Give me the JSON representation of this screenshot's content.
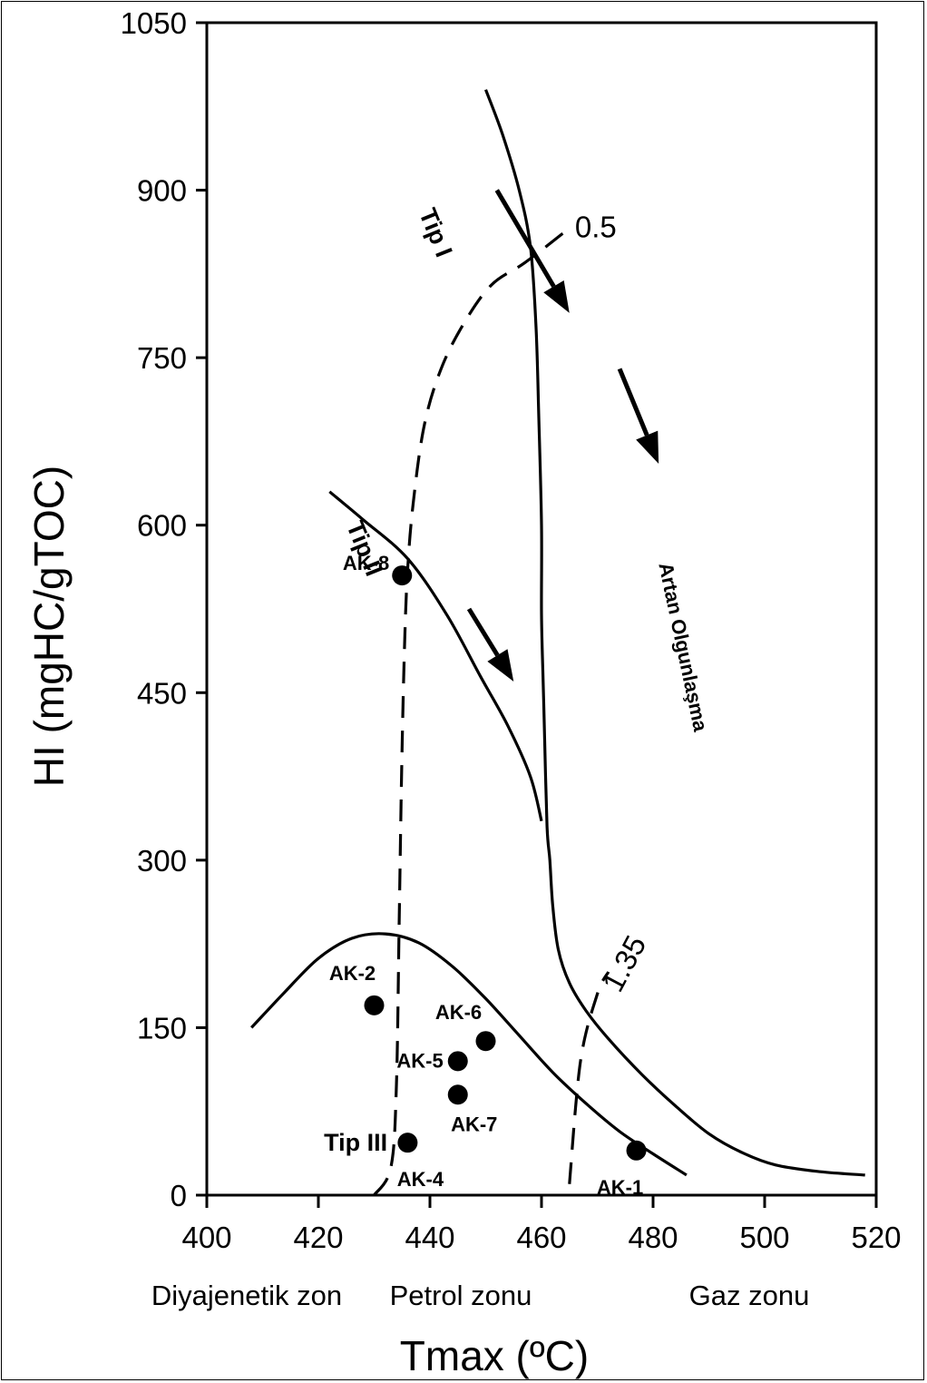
{
  "chart_data": {
    "type": "scatter",
    "xlabel": "Tmax (ºC)",
    "ylabel": "HI (mgHC/gTOC)",
    "xlim": [
      400,
      520
    ],
    "ylim": [
      0,
      1050
    ],
    "xticks": [
      400,
      420,
      440,
      460,
      480,
      500,
      520
    ],
    "yticks": [
      0,
      150,
      300,
      450,
      600,
      750,
      900,
      1050
    ],
    "grid": false,
    "zones": [
      "Diyajenetik zon",
      "Petrol zonu",
      "Gaz zonu"
    ],
    "points": [
      {
        "label": "AK-1",
        "x": 477,
        "y": 40
      },
      {
        "label": "AK-2",
        "x": 430,
        "y": 170
      },
      {
        "label": "AK-4",
        "x": 436,
        "y": 47
      },
      {
        "label": "AK-5",
        "x": 445,
        "y": 120
      },
      {
        "label": "AK-6",
        "x": 450,
        "y": 138
      },
      {
        "label": "AK-7",
        "x": 445,
        "y": 90
      },
      {
        "label": "AK-8",
        "x": 435,
        "y": 555
      }
    ],
    "curves": [
      {
        "name": "Tip I",
        "style": "solid",
        "points": [
          [
            450,
            990
          ],
          [
            453,
            950
          ],
          [
            456,
            900
          ],
          [
            458,
            850
          ],
          [
            459,
            780
          ],
          [
            459.5,
            700
          ],
          [
            460,
            600
          ],
          [
            460,
            520
          ],
          [
            460.3,
            460
          ],
          [
            460.5,
            420
          ],
          [
            461,
            330
          ],
          [
            461.5,
            300
          ],
          [
            462,
            260
          ],
          [
            463,
            220
          ],
          [
            465,
            190
          ],
          [
            468,
            165
          ],
          [
            472,
            140
          ],
          [
            478,
            108
          ],
          [
            484,
            80
          ],
          [
            490,
            55
          ],
          [
            496,
            38
          ],
          [
            502,
            27
          ],
          [
            510,
            21
          ],
          [
            518,
            18
          ]
        ]
      },
      {
        "name": "Tip II",
        "style": "solid",
        "points": [
          [
            422,
            630
          ],
          [
            428,
            605
          ],
          [
            436,
            570
          ],
          [
            443,
            520
          ],
          [
            449,
            465
          ],
          [
            454,
            420
          ],
          [
            458,
            375
          ],
          [
            460,
            335
          ]
        ]
      },
      {
        "name": "Tip III",
        "style": "solid",
        "points": [
          [
            408,
            150
          ],
          [
            414,
            182
          ],
          [
            420,
            212
          ],
          [
            426,
            230
          ],
          [
            432,
            234
          ],
          [
            438,
            226
          ],
          [
            444,
            205
          ],
          [
            450,
            176
          ],
          [
            456,
            143
          ],
          [
            462,
            110
          ],
          [
            468,
            82
          ],
          [
            474,
            57
          ],
          [
            480,
            37
          ],
          [
            486,
            18
          ]
        ]
      },
      {
        "name": "0.5",
        "style": "dashed",
        "points": [
          [
            430,
            0
          ],
          [
            433,
            25
          ],
          [
            434,
            100
          ],
          [
            434.5,
            250
          ],
          [
            435,
            400
          ],
          [
            435.5,
            500
          ],
          [
            436,
            560
          ],
          [
            437,
            620
          ],
          [
            439,
            690
          ],
          [
            442,
            740
          ],
          [
            446,
            780
          ],
          [
            451,
            815
          ],
          [
            457,
            835
          ],
          [
            464,
            862
          ]
        ]
      },
      {
        "name": "1.35",
        "style": "dashed",
        "points": [
          [
            465,
            10
          ],
          [
            467,
            120
          ],
          [
            470,
            180
          ],
          [
            472,
            200
          ]
        ]
      }
    ],
    "annotations": [
      {
        "text": "0.5",
        "x": 466,
        "y": 858
      },
      {
        "text": "1.35",
        "x": 474,
        "y": 180
      },
      {
        "text": "Tip I",
        "x": 438,
        "y": 880
      },
      {
        "text": "Tip II",
        "x": 425,
        "y": 600
      },
      {
        "text": "Tip III",
        "x": 421,
        "y": 40
      },
      {
        "text": "Artan Olgunlaşma",
        "x": 481,
        "y": 565
      }
    ],
    "arrows": [
      {
        "from": [
          452,
          900
        ],
        "to": [
          465,
          790
        ]
      },
      {
        "from": [
          447,
          525
        ],
        "to": [
          455,
          460
        ]
      },
      {
        "from": [
          474,
          740
        ],
        "to": [
          481,
          655
        ]
      }
    ]
  }
}
